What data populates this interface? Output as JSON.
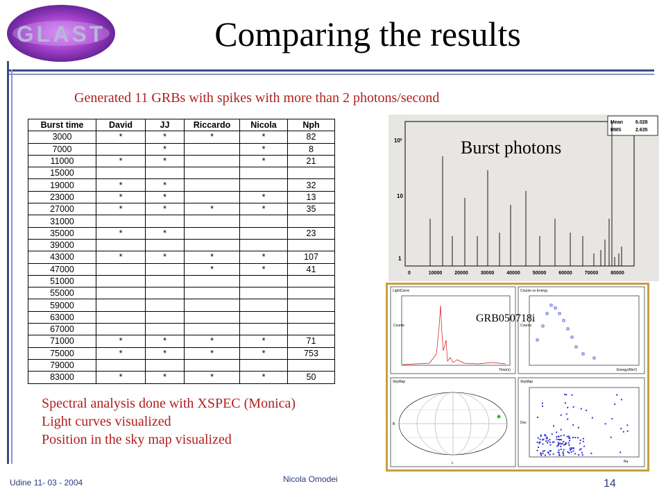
{
  "logo": {
    "text": "GLAST"
  },
  "slide": {
    "title": "Comparing the results",
    "subtitle": "Generated 11 GRBs with spikes with more than 2 photons/second",
    "notes": [
      "Spectral analysis done with XSPEC (Monica)",
      "Light curves visualized",
      "Position in the sky map visualized"
    ]
  },
  "table": {
    "headers": [
      "Burst time",
      "David",
      "JJ",
      "Riccardo",
      "Nicola",
      "Nph"
    ],
    "rows": [
      [
        "3000",
        "*",
        "*",
        "*",
        "*",
        "82"
      ],
      [
        "7000",
        "",
        "*",
        "",
        "*",
        "8"
      ],
      [
        "11000",
        "*",
        "*",
        "",
        "*",
        "21"
      ],
      [
        "15000",
        "",
        "",
        "",
        "",
        ""
      ],
      [
        "19000",
        "*",
        "*",
        "",
        "",
        "32"
      ],
      [
        "23000",
        "*",
        "*",
        "",
        "*",
        "13"
      ],
      [
        "27000",
        "*",
        "*",
        "*",
        "*",
        "35"
      ],
      [
        "31000",
        "",
        "",
        "",
        "",
        ""
      ],
      [
        "35000",
        "*",
        "*",
        "",
        "",
        "23"
      ],
      [
        "39000",
        "",
        "",
        "",
        "",
        ""
      ],
      [
        "43000",
        "*",
        "*",
        "*",
        "*",
        "107"
      ],
      [
        "47000",
        "",
        "",
        "*",
        "*",
        "41"
      ],
      [
        "51000",
        "",
        "",
        "",
        "",
        ""
      ],
      [
        "55000",
        "",
        "",
        "",
        "",
        ""
      ],
      [
        "59000",
        "",
        "",
        "",
        "",
        ""
      ],
      [
        "63000",
        "",
        "",
        "",
        "",
        ""
      ],
      [
        "67000",
        "",
        "",
        "",
        "",
        ""
      ],
      [
        "71000",
        "*",
        "*",
        "*",
        "*",
        "71"
      ],
      [
        "75000",
        "*",
        "*",
        "*",
        "*",
        "753"
      ],
      [
        "79000",
        "",
        "",
        "",
        "",
        ""
      ],
      [
        "83000",
        "*",
        "*",
        "*",
        "*",
        "50"
      ]
    ]
  },
  "histogram": {
    "label": "Burst photons",
    "stats": [
      {
        "name": "Mean",
        "value": "6.028"
      },
      {
        "name": "RMS",
        "value": "2.635"
      }
    ],
    "y_ticks": [
      "10²",
      "10",
      "1"
    ],
    "x_ticks": [
      "0",
      "10000",
      "20000",
      "30000",
      "40000",
      "50000",
      "60000",
      "70000",
      "80000"
    ],
    "log_y": true
  },
  "panels": {
    "grb_label": "GRB050718i",
    "titles": [
      "LightCurve",
      "Counts vs Energy",
      "SkyMap",
      "SkyMap"
    ],
    "axis_labels": [
      "Counts",
      "Time(s)",
      "Counts",
      "Energy(MeV)",
      "B",
      "L",
      "Dec",
      "Ra"
    ]
  },
  "footer": {
    "left": "Udine 11- 03 - 2004",
    "center": "Nicola Omodei",
    "page": "14"
  }
}
